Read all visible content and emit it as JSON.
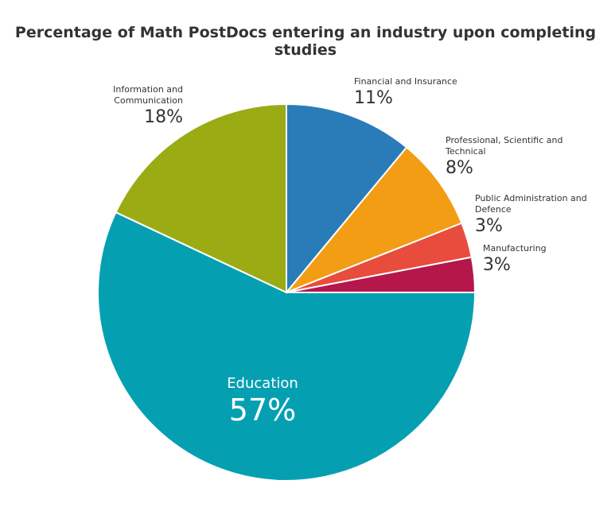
{
  "chart_data": {
    "type": "pie",
    "title": "Percentage of Math PostDocs entering an industry upon completing studies",
    "categories": [
      "Financial and Insurance",
      "Professional, Scientific and Technical",
      "Public Administration and Defence",
      "Manufacturing",
      "Education",
      "Information and Communication"
    ],
    "values": [
      11,
      8,
      3,
      3,
      57,
      18
    ],
    "value_labels": [
      "11%",
      "8%",
      "3%",
      "3%",
      "57%",
      "18%"
    ],
    "colors": [
      "#2a7cb8",
      "#f29d14",
      "#e74c3c",
      "#b5174b",
      "#04a0b2",
      "#9aab14"
    ]
  }
}
